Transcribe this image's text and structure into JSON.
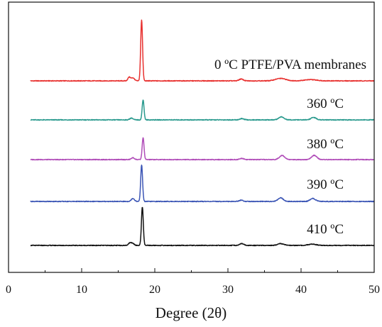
{
  "chart_data": {
    "type": "line",
    "title": "",
    "xlabel": "Degree (2θ)",
    "ylabel": "",
    "xlim": [
      0,
      50
    ],
    "x_ticks": [
      0,
      10,
      20,
      30,
      40,
      50
    ],
    "y_ticks_shown": false,
    "grid": false,
    "legend": "none",
    "series": [
      {
        "name": "0 ºC PTFE/PVA membranes",
        "color": "#e8312f",
        "baseline_offset": 4,
        "peaks": [
          {
            "x": 16.5,
            "h": 0.06,
            "w": 0.25
          },
          {
            "x": 17.0,
            "h": 0.05,
            "w": 0.3
          },
          {
            "x": 18.2,
            "h": 1.0,
            "w": 0.18
          },
          {
            "x": 31.8,
            "h": 0.03,
            "w": 0.4
          },
          {
            "x": 37.2,
            "h": 0.04,
            "w": 1.0
          },
          {
            "x": 41.3,
            "h": 0.02,
            "w": 1.2
          }
        ]
      },
      {
        "name": "360 ºC",
        "color": "#2a9a8e",
        "baseline_offset": 3,
        "peaks": [
          {
            "x": 16.8,
            "h": 0.03,
            "w": 0.3
          },
          {
            "x": 18.4,
            "h": 0.33,
            "w": 0.18
          },
          {
            "x": 31.9,
            "h": 0.02,
            "w": 0.4
          },
          {
            "x": 37.3,
            "h": 0.05,
            "w": 0.5
          },
          {
            "x": 41.7,
            "h": 0.04,
            "w": 0.5
          }
        ]
      },
      {
        "name": "380 ºC",
        "color": "#b04cb8",
        "baseline_offset": 2,
        "peaks": [
          {
            "x": 17.0,
            "h": 0.03,
            "w": 0.3
          },
          {
            "x": 18.4,
            "h": 0.36,
            "w": 0.18
          },
          {
            "x": 31.9,
            "h": 0.02,
            "w": 0.4
          },
          {
            "x": 37.4,
            "h": 0.07,
            "w": 0.5
          },
          {
            "x": 41.8,
            "h": 0.07,
            "w": 0.5
          }
        ]
      },
      {
        "name": "390 ºC",
        "color": "#3b55b5",
        "baseline_offset": 1,
        "peaks": [
          {
            "x": 17.0,
            "h": 0.05,
            "w": 0.3
          },
          {
            "x": 18.2,
            "h": 0.6,
            "w": 0.18
          },
          {
            "x": 31.8,
            "h": 0.02,
            "w": 0.4
          },
          {
            "x": 37.2,
            "h": 0.06,
            "w": 0.5
          },
          {
            "x": 41.6,
            "h": 0.05,
            "w": 0.5
          }
        ]
      },
      {
        "name": "410 ºC",
        "color": "#111111",
        "baseline_offset": 0,
        "peaks": [
          {
            "x": 16.6,
            "h": 0.04,
            "w": 0.3
          },
          {
            "x": 17.0,
            "h": 0.03,
            "w": 0.3
          },
          {
            "x": 18.3,
            "h": 0.63,
            "w": 0.18
          },
          {
            "x": 31.9,
            "h": 0.03,
            "w": 0.4
          },
          {
            "x": 37.2,
            "h": 0.03,
            "w": 0.6
          },
          {
            "x": 41.5,
            "h": 0.02,
            "w": 0.8
          }
        ]
      }
    ]
  }
}
